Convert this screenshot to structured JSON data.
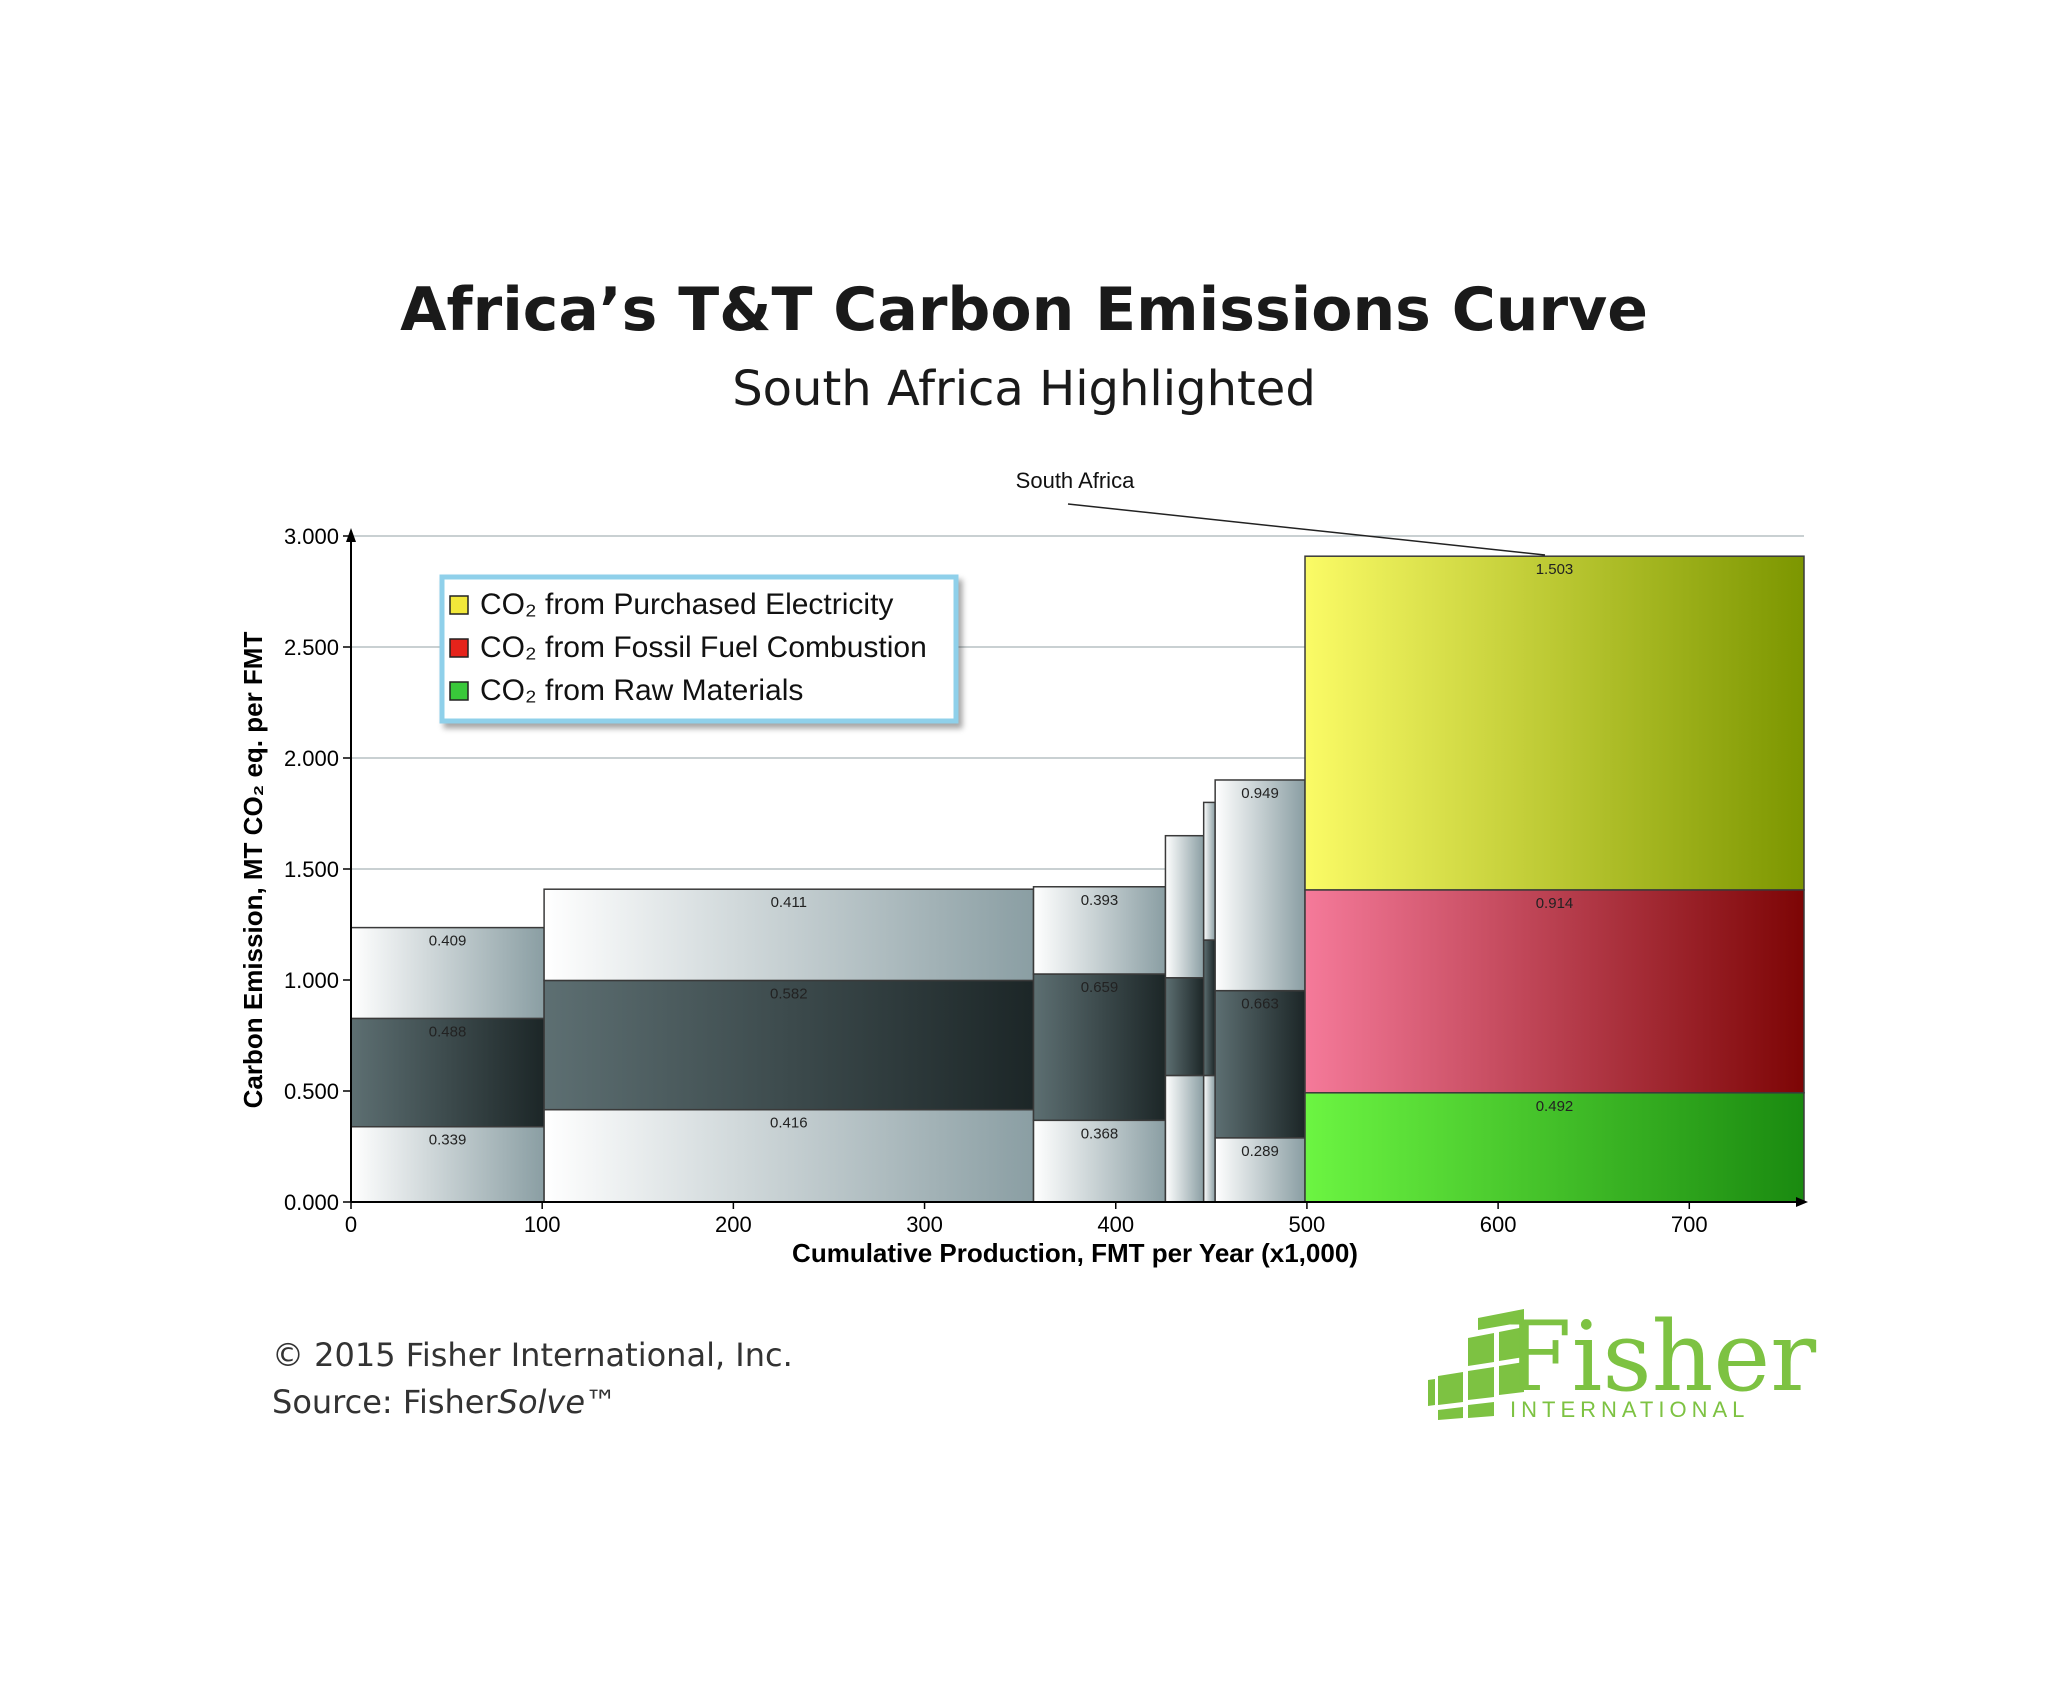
{
  "chart_data": {
    "type": "bar",
    "title": "Africa’s T&T Carbon Emissions Curve",
    "subtitle": "South Africa Highlighted",
    "xlabel": "Cumulative Production, FMT per Year (x1,000)",
    "ylabel": "Carbon Emission,  MT  CO₂ eq.  per FMT",
    "xlim": [
      0,
      760
    ],
    "ylim": [
      0,
      3.0
    ],
    "x_ticks": [
      "0",
      "100",
      "200",
      "300",
      "400",
      "500",
      "600",
      "700"
    ],
    "y_ticks": [
      "0.000",
      "0.500",
      "1.000",
      "1.500",
      "2.000",
      "2.500",
      "3.000"
    ],
    "grid": "horizontal",
    "legend_position": "top-left",
    "series": [
      {
        "name": "CO₂ from Purchased Electricity",
        "color": "#f2e83a"
      },
      {
        "name": "CO₂ from Fossil Fuel Combustion",
        "color": "#e5231b"
      },
      {
        "name": "CO₂ from Raw Materials",
        "color": "#39c83a"
      }
    ],
    "bars": [
      {
        "x0": 0,
        "x1": 101,
        "raw": 0.339,
        "fossil": 0.488,
        "elec": 0.409,
        "labels": [
          "0.339",
          "0.488",
          "0.409"
        ],
        "highlight": false
      },
      {
        "x0": 101,
        "x1": 357,
        "raw": 0.416,
        "fossil": 0.582,
        "elec": 0.411,
        "labels": [
          "0.416",
          "0.582",
          "0.411"
        ],
        "highlight": false
      },
      {
        "x0": 357,
        "x1": 426,
        "raw": 0.368,
        "fossil": 0.659,
        "elec": 0.393,
        "labels": [
          "0.368",
          "0.659",
          "0.393"
        ],
        "highlight": false
      },
      {
        "x0": 426,
        "x1": 446,
        "raw": 0.57,
        "fossil": 0.44,
        "elec": 0.64,
        "labels": [],
        "highlight": false
      },
      {
        "x0": 446,
        "x1": 452,
        "raw": 0.57,
        "fossil": 0.61,
        "elec": 0.62,
        "labels": [],
        "highlight": false
      },
      {
        "x0": 452,
        "x1": 499,
        "raw": 0.289,
        "fossil": 0.663,
        "elec": 0.949,
        "labels": [
          "0.289",
          "0.663",
          "0.949"
        ],
        "highlight": false
      },
      {
        "x0": 499,
        "x1": 760,
        "raw": 0.492,
        "fossil": 0.914,
        "elec": 1.503,
        "labels": [
          "0.492",
          "0.914",
          "1.503"
        ],
        "highlight": true
      }
    ],
    "annotation": "South Africa"
  },
  "footer": {
    "copyright": "© 2015 Fisher International, Inc.",
    "source_prefix": "Source: Fisher",
    "source_italic": "Solve",
    "source_suffix": "™"
  },
  "logo": {
    "word": "Fisher",
    "sub": "INTERNATIONAL"
  }
}
